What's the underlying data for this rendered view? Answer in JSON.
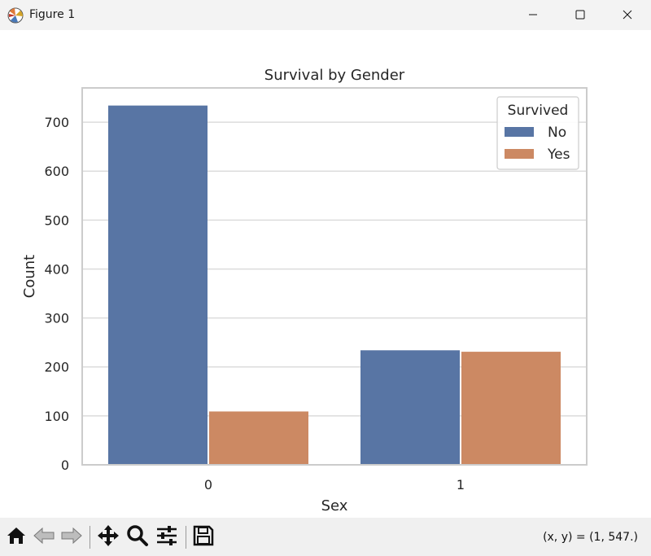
{
  "window": {
    "title": "Figure 1"
  },
  "icons": {
    "app": "matplotlib-figure-icon",
    "minimize": "minimize-icon",
    "maximize": "maximize-icon",
    "close": "close-icon"
  },
  "toolbar": {
    "tools": [
      "home-icon",
      "back-arrow-icon",
      "forward-arrow-icon",
      "pan-icon",
      "zoom-icon",
      "configure-subplots-icon",
      "save-icon"
    ],
    "coordinates": "(x, y) = (1, 547.)"
  },
  "chart_data": {
    "type": "bar",
    "title": "Survival by Gender",
    "xlabel": "Sex",
    "ylabel": "Count",
    "categories": [
      "0",
      "1"
    ],
    "series": [
      {
        "name": "No",
        "color": "#5875a4",
        "values": [
          734,
          234
        ]
      },
      {
        "name": "Yes",
        "color": "#cc8963",
        "values": [
          109,
          231
        ]
      }
    ],
    "ylim": [
      0,
      770
    ],
    "yticks": [
      0,
      100,
      200,
      300,
      400,
      500,
      600,
      700
    ],
    "grid": true,
    "legend": {
      "title": "Survived",
      "placement": "top-right"
    }
  }
}
